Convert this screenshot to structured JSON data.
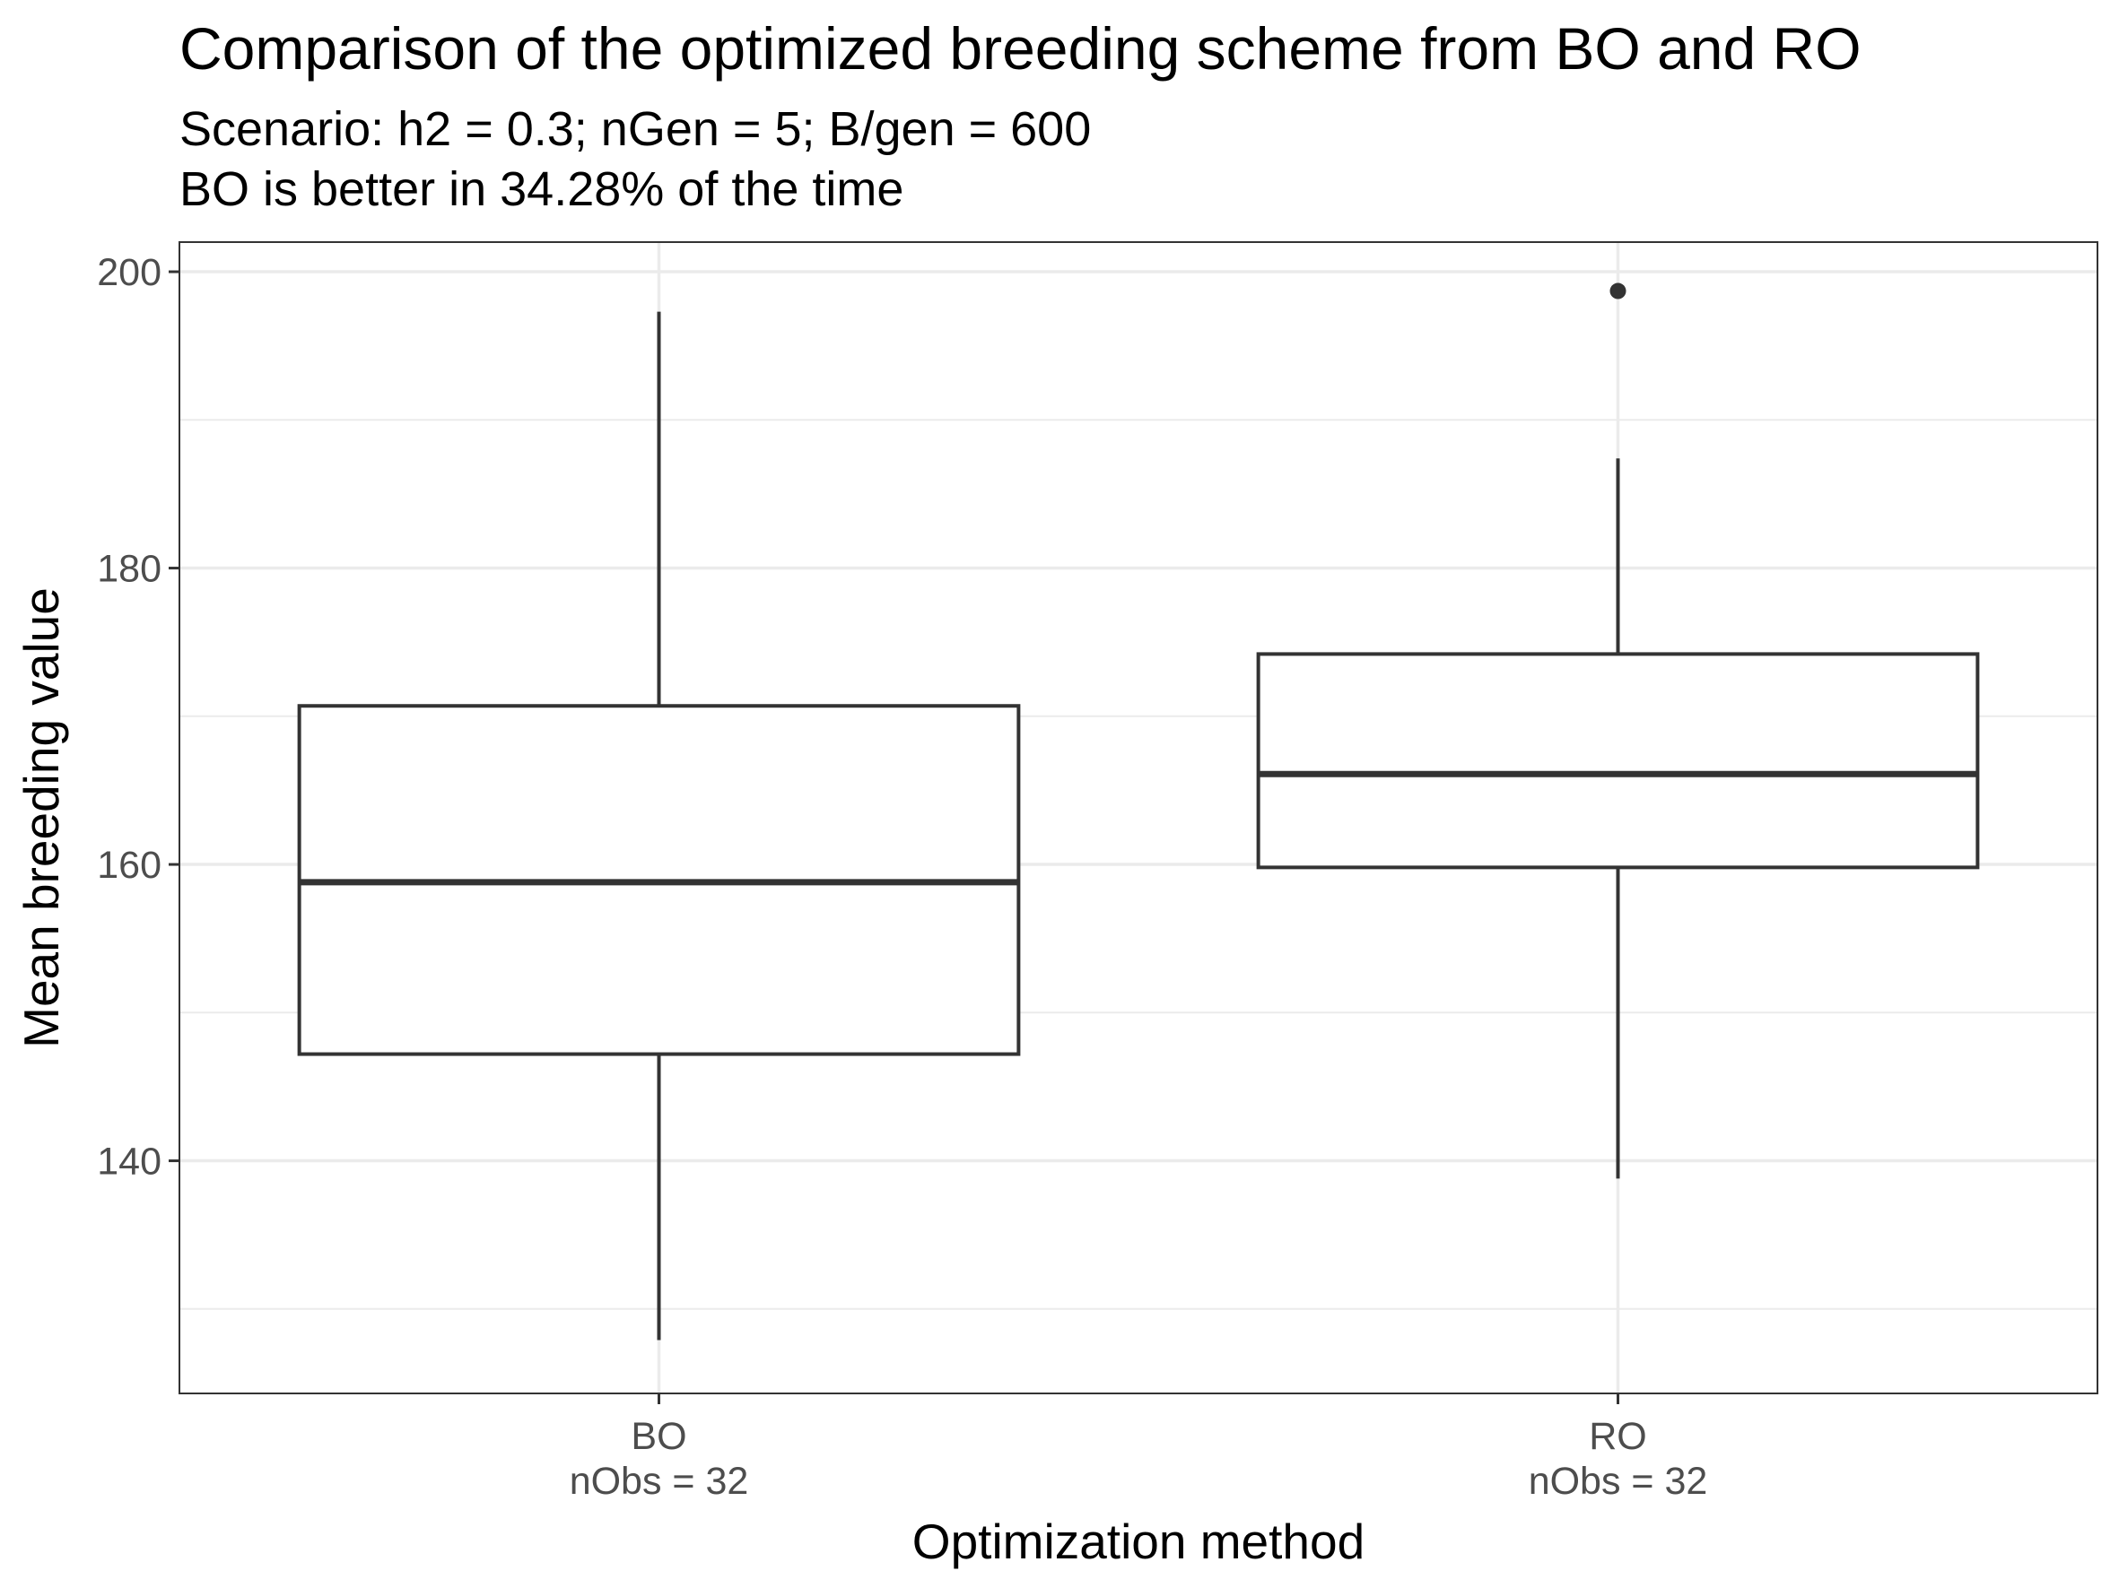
{
  "chart_data": {
    "type": "boxplot",
    "title": "Comparison of the optimized breeding scheme from BO and RO",
    "subtitle_lines": [
      "Scenario: h2 = 0.3; nGen = 5; B/gen = 600",
      "BO is better in 34.28% of the time"
    ],
    "xlabel": "Optimization method",
    "ylabel": "Mean breeding value",
    "ylim": [
      124.3,
      202
    ],
    "y_ticks": [
      140,
      160,
      180,
      200
    ],
    "y_minor_ticks": [
      130,
      150,
      170,
      190
    ],
    "grid": true,
    "categories": [
      {
        "label": "BO",
        "sublabel": "nObs = 32"
      },
      {
        "label": "RO",
        "sublabel": "nObs = 32"
      }
    ],
    "boxes": [
      {
        "category": "BO",
        "whisker_low": 127.9,
        "q1": 147.2,
        "median": 158.8,
        "q3": 170.7,
        "whisker_high": 197.3,
        "outliers": []
      },
      {
        "category": "RO",
        "whisker_low": 138.8,
        "q1": 159.8,
        "median": 166.1,
        "q3": 174.2,
        "whisker_high": 187.4,
        "outliers": [
          198.7
        ]
      }
    ],
    "colors": {
      "box_line": "#333333",
      "box_fill": "#ffffff",
      "grid": "#ebebeb",
      "panel_border": "#333333"
    }
  }
}
